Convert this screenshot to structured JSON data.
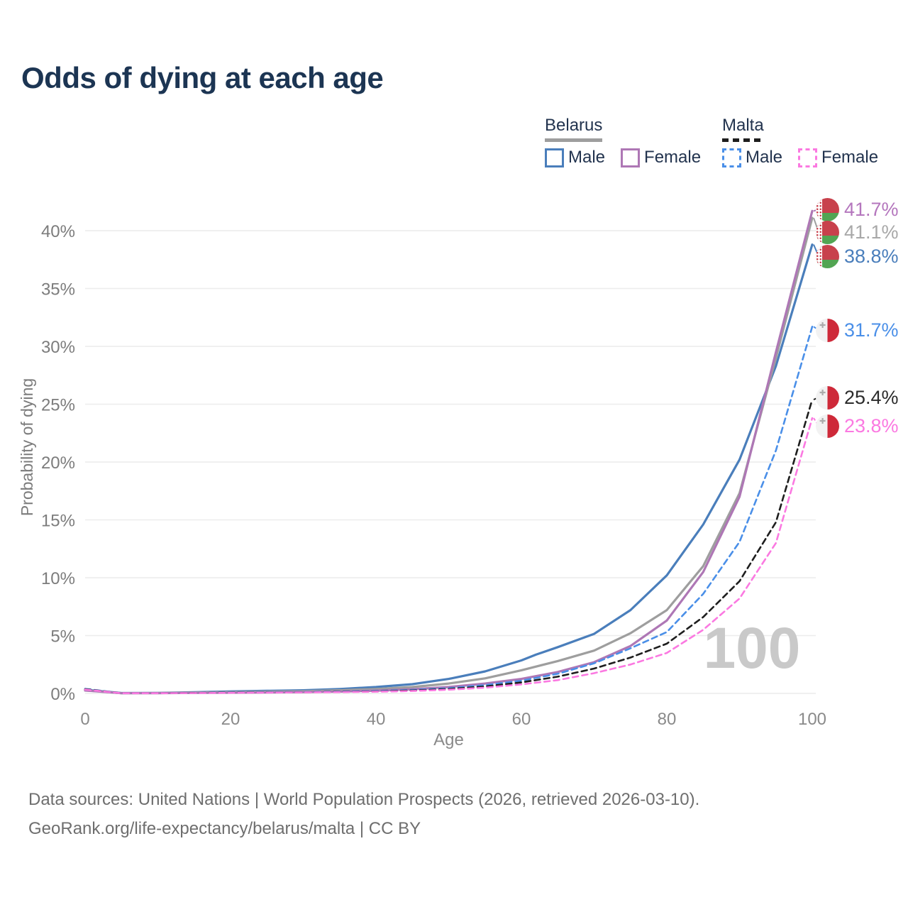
{
  "title": "Odds of dying at each age",
  "legend": {
    "groups": [
      {
        "id": "belarus",
        "label": "Belarus",
        "line_style": "solid",
        "line_color": "#9e9e9e",
        "items": [
          {
            "label": "Male",
            "color": "#4a7ebb",
            "dash": false
          },
          {
            "label": "Female",
            "color": "#ae77b5",
            "dash": false
          }
        ]
      },
      {
        "id": "malta",
        "label": "Malta",
        "line_style": "dashed",
        "line_color": "#1e1e1e",
        "items": [
          {
            "label": "Male",
            "color": "#4a8fe8",
            "dash": true
          },
          {
            "label": "Female",
            "color": "#fb79e1",
            "dash": true
          }
        ]
      }
    ]
  },
  "chart_data": {
    "type": "line",
    "title": "Odds of dying at each age",
    "xlabel": "Age",
    "ylabel": "Probability of dying",
    "xlim": [
      0,
      100
    ],
    "ylim": [
      0,
      42
    ],
    "grid": "horizontal-only",
    "grid_color": "#ececec",
    "hover_age_watermark": "100",
    "xticks": {
      "values": [
        0,
        20,
        40,
        60,
        80,
        100
      ],
      "labels": [
        "0",
        "20",
        "40",
        "60",
        "80",
        "100"
      ]
    },
    "yticks": {
      "values": [
        0,
        5,
        10,
        15,
        20,
        25,
        30,
        35,
        40
      ],
      "labels": [
        "0%",
        "5%",
        "10%",
        "15%",
        "20%",
        "25%",
        "30%",
        "35%",
        "40%"
      ]
    },
    "series": [
      {
        "id": "belarus-male",
        "name": "Belarus — Male",
        "country": "Belarus",
        "sex": "Male",
        "color": "#4a7ebb",
        "dash": false,
        "flag": "belarus",
        "end_label": {
          "text": "38.8%",
          "color": "#4a7ebb"
        },
        "points": [
          [
            0,
            0.32
          ],
          [
            5,
            0.03
          ],
          [
            10,
            0.04
          ],
          [
            15,
            0.1
          ],
          [
            20,
            0.17
          ],
          [
            25,
            0.22
          ],
          [
            30,
            0.27
          ],
          [
            35,
            0.38
          ],
          [
            40,
            0.55
          ],
          [
            45,
            0.8
          ],
          [
            50,
            1.25
          ],
          [
            55,
            1.9
          ],
          [
            60,
            2.85
          ],
          [
            62,
            3.35
          ],
          [
            65,
            4.0
          ],
          [
            70,
            5.15
          ],
          [
            75,
            7.2
          ],
          [
            80,
            10.2
          ],
          [
            85,
            14.6
          ],
          [
            90,
            20.2
          ],
          [
            95,
            28.3
          ],
          [
            100,
            38.8
          ]
        ]
      },
      {
        "id": "belarus-all",
        "name": "Belarus — Both sexes (header line)",
        "country": "Belarus",
        "sex": "All",
        "color": "#9e9e9e",
        "dash": false,
        "flag": "belarus",
        "end_label": {
          "text": "41.1%",
          "color": "#a8a8a8"
        },
        "points": [
          [
            0,
            0.27
          ],
          [
            5,
            0.02
          ],
          [
            10,
            0.03
          ],
          [
            15,
            0.07
          ],
          [
            20,
            0.11
          ],
          [
            25,
            0.15
          ],
          [
            30,
            0.19
          ],
          [
            35,
            0.27
          ],
          [
            40,
            0.38
          ],
          [
            45,
            0.55
          ],
          [
            50,
            0.85
          ],
          [
            55,
            1.3
          ],
          [
            60,
            2.0
          ],
          [
            65,
            2.8
          ],
          [
            70,
            3.7
          ],
          [
            75,
            5.2
          ],
          [
            80,
            7.2
          ],
          [
            85,
            11.0
          ],
          [
            90,
            17.3
          ],
          [
            95,
            29.0
          ],
          [
            100,
            41.1
          ]
        ]
      },
      {
        "id": "belarus-female",
        "name": "Belarus — Female",
        "country": "Belarus",
        "sex": "Female",
        "color": "#ae77b5",
        "dash": false,
        "flag": "belarus",
        "end_label": {
          "text": "41.7%",
          "color": "#b476bd"
        },
        "points": [
          [
            0,
            0.25
          ],
          [
            5,
            0.02
          ],
          [
            10,
            0.02
          ],
          [
            15,
            0.04
          ],
          [
            20,
            0.06
          ],
          [
            25,
            0.08
          ],
          [
            30,
            0.11
          ],
          [
            35,
            0.16
          ],
          [
            40,
            0.24
          ],
          [
            45,
            0.36
          ],
          [
            50,
            0.55
          ],
          [
            55,
            0.85
          ],
          [
            60,
            1.25
          ],
          [
            65,
            1.85
          ],
          [
            70,
            2.7
          ],
          [
            75,
            4.1
          ],
          [
            80,
            6.3
          ],
          [
            85,
            10.5
          ],
          [
            90,
            17.0
          ],
          [
            95,
            29.5
          ],
          [
            100,
            41.7
          ]
        ]
      },
      {
        "id": "malta-male",
        "name": "Malta — Male",
        "country": "Malta",
        "sex": "Male",
        "color": "#4a8fe8",
        "dash": true,
        "flag": "malta",
        "end_label": {
          "text": "31.7%",
          "color": "#4a8fe8"
        },
        "points": [
          [
            0,
            0.4
          ],
          [
            5,
            0.02
          ],
          [
            10,
            0.02
          ],
          [
            15,
            0.05
          ],
          [
            20,
            0.08
          ],
          [
            25,
            0.1
          ],
          [
            30,
            0.12
          ],
          [
            35,
            0.16
          ],
          [
            40,
            0.21
          ],
          [
            45,
            0.3
          ],
          [
            50,
            0.45
          ],
          [
            55,
            0.72
          ],
          [
            60,
            1.1
          ],
          [
            65,
            1.7
          ],
          [
            70,
            2.6
          ],
          [
            75,
            3.9
          ],
          [
            80,
            5.3
          ],
          [
            85,
            8.6
          ],
          [
            90,
            13.1
          ],
          [
            95,
            21.0
          ],
          [
            100,
            31.7
          ]
        ]
      },
      {
        "id": "malta-all",
        "name": "Malta — Both sexes (header line)",
        "country": "Malta",
        "sex": "All",
        "color": "#1e1e1e",
        "dash": true,
        "flag": "malta",
        "end_label": {
          "text": "25.4%",
          "color": "#2b2b2b"
        },
        "points": [
          [
            0,
            0.37
          ],
          [
            5,
            0.02
          ],
          [
            10,
            0.02
          ],
          [
            15,
            0.04
          ],
          [
            20,
            0.06
          ],
          [
            25,
            0.08
          ],
          [
            30,
            0.1
          ],
          [
            35,
            0.13
          ],
          [
            40,
            0.17
          ],
          [
            45,
            0.25
          ],
          [
            50,
            0.38
          ],
          [
            55,
            0.6
          ],
          [
            60,
            0.95
          ],
          [
            65,
            1.45
          ],
          [
            70,
            2.15
          ],
          [
            75,
            3.1
          ],
          [
            80,
            4.3
          ],
          [
            85,
            6.6
          ],
          [
            90,
            9.7
          ],
          [
            95,
            14.8
          ],
          [
            100,
            25.4
          ]
        ]
      },
      {
        "id": "malta-female",
        "name": "Malta — Female",
        "country": "Malta",
        "sex": "Female",
        "color": "#fb79e1",
        "dash": true,
        "flag": "malta",
        "end_label": {
          "text": "23.8%",
          "color": "#fb79e1"
        },
        "points": [
          [
            0,
            0.33
          ],
          [
            5,
            0.02
          ],
          [
            10,
            0.02
          ],
          [
            15,
            0.03
          ],
          [
            20,
            0.05
          ],
          [
            25,
            0.07
          ],
          [
            30,
            0.09
          ],
          [
            35,
            0.11
          ],
          [
            40,
            0.15
          ],
          [
            45,
            0.21
          ],
          [
            50,
            0.32
          ],
          [
            55,
            0.5
          ],
          [
            60,
            0.78
          ],
          [
            65,
            1.15
          ],
          [
            70,
            1.75
          ],
          [
            75,
            2.5
          ],
          [
            80,
            3.5
          ],
          [
            85,
            5.5
          ],
          [
            90,
            8.2
          ],
          [
            95,
            13.0
          ],
          [
            100,
            23.8
          ]
        ]
      }
    ]
  },
  "footer": {
    "line1": "Data sources: United Nations | World Population Prospects (2026, retrieved 2026-03-10).",
    "line2": "GeoRank.org/life-expectancy/belarus/malta | CC BY"
  }
}
